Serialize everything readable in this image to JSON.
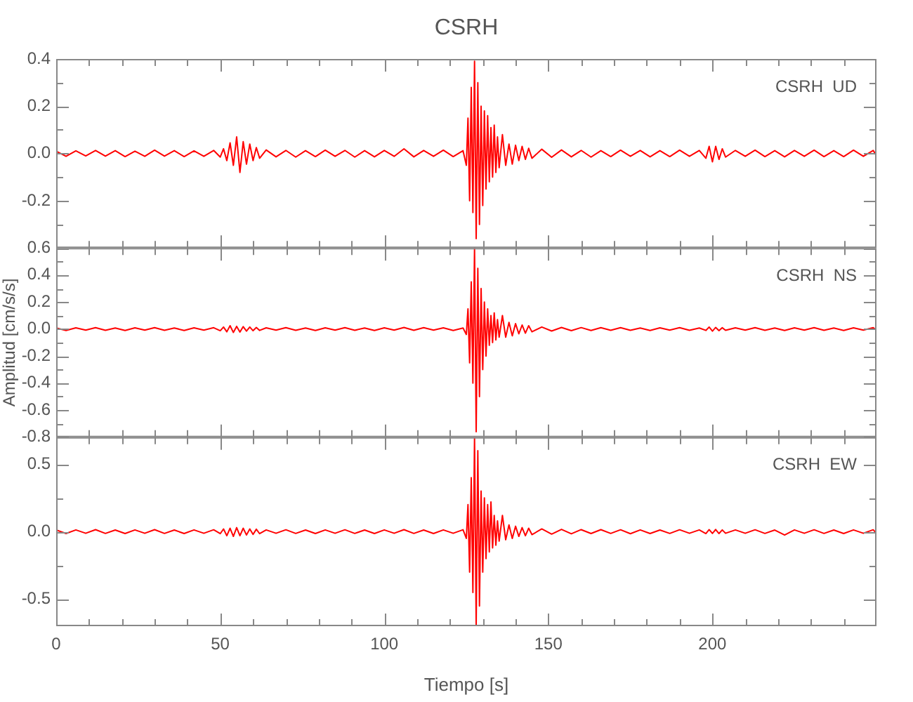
{
  "chart_data": [
    {
      "type": "line",
      "title": "CSRH",
      "annotations": [
        "CSRH  UD"
      ],
      "color": "#ff0000",
      "tick_labels": "y",
      "x": [
        0,
        3,
        6,
        9,
        12,
        15,
        18,
        21,
        24,
        27,
        30,
        33,
        36,
        39,
        42,
        45,
        48,
        50,
        51,
        52,
        53,
        54,
        55,
        56,
        57,
        58,
        59,
        60,
        61,
        62,
        64,
        67,
        70,
        73,
        76,
        79,
        82,
        85,
        88,
        91,
        94,
        97,
        100,
        103,
        106,
        109,
        112,
        115,
        118,
        121,
        124,
        125,
        125.5,
        126,
        126.5,
        127,
        127.5,
        128,
        128.5,
        129,
        129.5,
        130,
        130.5,
        131,
        131.5,
        132,
        132.5,
        133,
        133.5,
        134,
        134.5,
        135,
        136,
        137,
        138,
        139,
        140,
        141,
        142,
        143,
        144,
        145,
        148,
        151,
        154,
        157,
        160,
        163,
        166,
        169,
        172,
        175,
        178,
        181,
        184,
        187,
        190,
        193,
        196,
        198,
        199,
        200,
        201,
        202,
        203,
        204,
        207,
        210,
        213,
        216,
        219,
        222,
        225,
        228,
        231,
        234,
        237,
        240,
        243,
        246,
        249,
        250
      ],
      "values": [
        0.01,
        -0.012,
        0.011,
        -0.01,
        0.013,
        -0.011,
        0.012,
        -0.013,
        0.01,
        -0.012,
        0.014,
        -0.011,
        0.012,
        -0.013,
        0.011,
        -0.012,
        0.013,
        -0.015,
        0.02,
        -0.03,
        0.045,
        -0.05,
        0.07,
        -0.08,
        0.05,
        -0.045,
        0.04,
        -0.03,
        0.025,
        -0.02,
        0.015,
        -0.014,
        0.013,
        -0.015,
        0.012,
        -0.013,
        0.014,
        -0.012,
        0.013,
        -0.015,
        0.012,
        -0.014,
        0.013,
        -0.012,
        0.02,
        -0.014,
        0.013,
        -0.012,
        0.014,
        -0.013,
        0.012,
        -0.05,
        0.15,
        -0.2,
        0.28,
        -0.25,
        0.39,
        -0.36,
        0.3,
        -0.3,
        0.2,
        -0.22,
        0.18,
        -0.15,
        0.16,
        -0.12,
        0.11,
        -0.1,
        0.12,
        -0.08,
        0.07,
        -0.06,
        0.08,
        -0.05,
        0.04,
        -0.045,
        0.035,
        -0.03,
        0.03,
        -0.025,
        0.022,
        -0.02,
        0.018,
        -0.016,
        0.015,
        -0.014,
        0.013,
        -0.015,
        0.012,
        -0.013,
        0.014,
        -0.012,
        0.013,
        -0.014,
        0.012,
        -0.013,
        0.014,
        -0.012,
        0.013,
        -0.02,
        0.03,
        -0.035,
        0.03,
        -0.025,
        0.02,
        -0.015,
        0.013,
        -0.012,
        0.014,
        -0.013,
        0.012,
        -0.014,
        0.013,
        -0.012,
        0.014,
        -0.013,
        0.012,
        -0.013,
        0.014,
        -0.012,
        0.013,
        -0.01
      ],
      "xlim": [
        0,
        250
      ],
      "xticks": [
        0,
        {
          "value": 10,
          "label": null
        },
        {
          "value": 20,
          "label": null
        },
        {
          "value": 30,
          "label": null
        },
        {
          "value": 40,
          "label": null
        },
        50,
        {
          "value": 60,
          "label": null
        },
        {
          "value": 70,
          "label": null
        },
        {
          "value": 80,
          "label": null
        },
        {
          "value": 90,
          "label": null
        },
        100,
        {
          "value": 110,
          "label": null
        },
        {
          "value": 120,
          "label": null
        },
        {
          "value": 130,
          "label": null
        },
        {
          "value": 140,
          "label": null
        },
        150,
        {
          "value": 160,
          "label": null
        },
        {
          "value": 170,
          "label": null
        },
        {
          "value": 180,
          "label": null
        },
        {
          "value": 190,
          "label": null
        },
        200,
        {
          "value": 210,
          "label": null
        },
        {
          "value": 220,
          "label": null
        },
        {
          "value": 230,
          "label": null
        },
        {
          "value": 240,
          "label": null
        }
      ],
      "ylim": [
        -0.4,
        0.4
      ],
      "yticks": [
        {
          "value": -0.4,
          "label": null
        },
        {
          "value": -0.3,
          "label": null
        },
        {
          "value": -0.2,
          "label": "-0.2"
        },
        {
          "value": -0.1,
          "label": null
        },
        {
          "value": 0,
          "label": "0.0"
        },
        {
          "value": 0.1,
          "label": null
        },
        {
          "value": 0.2,
          "label": "0.2"
        },
        {
          "value": 0.3,
          "label": null
        },
        {
          "value": 0.4,
          "label": "0.4"
        }
      ]
    },
    {
      "type": "line",
      "ylabel": "Amplitud [cm/s/s]",
      "annotations": [
        "CSRH  NS"
      ],
      "color": "#ff0000",
      "tick_labels": "y",
      "x": [
        0,
        3,
        6,
        9,
        12,
        15,
        18,
        21,
        24,
        27,
        30,
        33,
        36,
        39,
        42,
        45,
        48,
        50,
        51,
        52,
        53,
        54,
        55,
        56,
        57,
        58,
        59,
        60,
        61,
        62,
        64,
        67,
        70,
        73,
        76,
        79,
        82,
        85,
        88,
        91,
        94,
        97,
        100,
        103,
        106,
        109,
        112,
        115,
        118,
        121,
        124,
        125,
        125.5,
        126,
        126.5,
        127,
        127.5,
        128,
        128.5,
        129,
        129.5,
        130,
        130.5,
        131,
        131.5,
        132,
        132.5,
        133,
        133.5,
        134,
        134.5,
        135,
        136,
        137,
        138,
        139,
        140,
        141,
        142,
        143,
        144,
        145,
        148,
        151,
        154,
        157,
        160,
        163,
        166,
        169,
        172,
        175,
        178,
        181,
        184,
        187,
        190,
        193,
        196,
        198,
        199,
        200,
        201,
        202,
        203,
        204,
        207,
        210,
        213,
        216,
        219,
        222,
        225,
        228,
        231,
        234,
        237,
        240,
        243,
        246,
        249,
        250
      ],
      "values": [
        0.008,
        -0.01,
        0.009,
        -0.008,
        0.01,
        -0.009,
        0.008,
        -0.01,
        0.009,
        -0.008,
        0.01,
        -0.009,
        0.008,
        -0.01,
        0.009,
        -0.008,
        0.01,
        -0.012,
        0.015,
        -0.02,
        0.025,
        -0.025,
        0.02,
        -0.022,
        0.018,
        -0.015,
        0.015,
        -0.012,
        0.012,
        -0.01,
        0.009,
        -0.008,
        0.01,
        -0.009,
        0.008,
        -0.01,
        0.009,
        -0.008,
        0.01,
        -0.009,
        0.008,
        -0.01,
        0.009,
        -0.008,
        0.012,
        -0.009,
        0.01,
        -0.008,
        0.009,
        -0.01,
        0.008,
        -0.04,
        0.15,
        -0.25,
        0.35,
        -0.4,
        0.6,
        -0.76,
        0.45,
        -0.5,
        0.3,
        -0.3,
        0.2,
        -0.2,
        0.15,
        -0.12,
        0.1,
        -0.1,
        0.12,
        -0.08,
        0.07,
        -0.06,
        0.1,
        -0.06,
        0.05,
        -0.05,
        0.04,
        -0.035,
        0.03,
        -0.03,
        0.025,
        -0.02,
        0.015,
        -0.014,
        0.012,
        -0.012,
        0.011,
        -0.01,
        0.01,
        -0.009,
        0.01,
        -0.009,
        0.008,
        -0.01,
        0.009,
        -0.008,
        0.01,
        -0.009,
        0.008,
        -0.01,
        0.015,
        -0.015,
        0.012,
        -0.012,
        0.01,
        -0.009,
        0.009,
        -0.008,
        0.01,
        -0.009,
        0.008,
        -0.01,
        0.009,
        -0.008,
        0.01,
        -0.009,
        0.008,
        -0.01,
        0.009,
        -0.008,
        0.01,
        -0.008
      ],
      "xlim": [
        0,
        250
      ],
      "xticks": [
        0,
        {
          "value": 10,
          "label": null
        },
        {
          "value": 20,
          "label": null
        },
        {
          "value": 30,
          "label": null
        },
        {
          "value": 40,
          "label": null
        },
        50,
        {
          "value": 60,
          "label": null
        },
        {
          "value": 70,
          "label": null
        },
        {
          "value": 80,
          "label": null
        },
        {
          "value": 90,
          "label": null
        },
        100,
        {
          "value": 110,
          "label": null
        },
        {
          "value": 120,
          "label": null
        },
        {
          "value": 130,
          "label": null
        },
        {
          "value": 140,
          "label": null
        },
        150,
        {
          "value": 160,
          "label": null
        },
        {
          "value": 170,
          "label": null
        },
        {
          "value": 180,
          "label": null
        },
        {
          "value": 190,
          "label": null
        },
        200,
        {
          "value": 210,
          "label": null
        },
        {
          "value": 220,
          "label": null
        },
        {
          "value": 230,
          "label": null
        },
        {
          "value": 240,
          "label": null
        }
      ],
      "ylim": [
        -0.8,
        0.6
      ],
      "yticks": [
        {
          "value": -0.8,
          "label": "-0.8"
        },
        {
          "value": -0.7,
          "label": null
        },
        {
          "value": -0.6,
          "label": "-0.6"
        },
        {
          "value": -0.5,
          "label": null
        },
        {
          "value": -0.4,
          "label": "-0.4"
        },
        {
          "value": -0.3,
          "label": null
        },
        {
          "value": -0.2,
          "label": "-0.2"
        },
        {
          "value": -0.1,
          "label": null
        },
        {
          "value": 0,
          "label": "0.0"
        },
        {
          "value": 0.1,
          "label": null
        },
        {
          "value": 0.2,
          "label": "0.2"
        },
        {
          "value": 0.3,
          "label": null
        },
        {
          "value": 0.4,
          "label": "0.4"
        },
        {
          "value": 0.5,
          "label": null
        },
        {
          "value": 0.6,
          "label": "0.6"
        }
      ]
    },
    {
      "type": "line",
      "xlabel": "Tiempo [s]",
      "annotations": [
        "CSRH  EW"
      ],
      "color": "#ff0000",
      "x": [
        0,
        3,
        6,
        9,
        12,
        15,
        18,
        21,
        24,
        27,
        30,
        33,
        36,
        39,
        42,
        45,
        48,
        50,
        51,
        52,
        53,
        54,
        55,
        56,
        57,
        58,
        59,
        60,
        61,
        62,
        64,
        67,
        70,
        73,
        76,
        79,
        82,
        85,
        88,
        91,
        94,
        97,
        100,
        103,
        106,
        109,
        112,
        115,
        118,
        121,
        124,
        125,
        125.5,
        126,
        126.5,
        127,
        127.5,
        128,
        128.5,
        129,
        129.5,
        130,
        130.5,
        131,
        131.5,
        132,
        132.5,
        133,
        133.5,
        134,
        134.5,
        135,
        136,
        137,
        138,
        139,
        140,
        141,
        142,
        143,
        144,
        145,
        148,
        151,
        154,
        157,
        160,
        163,
        166,
        169,
        172,
        175,
        178,
        181,
        184,
        187,
        190,
        193,
        196,
        198,
        199,
        200,
        201,
        202,
        203,
        204,
        207,
        210,
        213,
        216,
        219,
        222,
        225,
        228,
        231,
        234,
        237,
        240,
        243,
        246,
        249,
        250
      ],
      "values": [
        0.012,
        -0.014,
        0.013,
        -0.012,
        0.015,
        -0.013,
        0.012,
        -0.014,
        0.013,
        -0.012,
        0.015,
        -0.013,
        0.012,
        -0.014,
        0.013,
        -0.012,
        0.014,
        -0.015,
        0.02,
        -0.03,
        0.025,
        -0.035,
        0.03,
        -0.03,
        0.025,
        -0.025,
        0.02,
        -0.02,
        0.018,
        -0.015,
        0.013,
        -0.012,
        0.014,
        -0.013,
        0.012,
        -0.014,
        0.013,
        -0.012,
        0.014,
        -0.013,
        0.012,
        -0.014,
        0.013,
        -0.012,
        0.015,
        -0.013,
        0.012,
        -0.014,
        0.013,
        -0.012,
        0.014,
        -0.05,
        0.2,
        -0.3,
        0.4,
        -0.45,
        0.7,
        -0.69,
        0.6,
        -0.55,
        0.3,
        -0.3,
        0.25,
        -0.2,
        0.2,
        -0.15,
        0.22,
        -0.12,
        0.12,
        -0.1,
        0.08,
        -0.07,
        0.12,
        -0.06,
        0.05,
        -0.05,
        0.04,
        -0.035,
        0.03,
        -0.03,
        0.025,
        -0.022,
        0.02,
        -0.018,
        0.017,
        -0.016,
        0.015,
        -0.014,
        0.015,
        -0.013,
        0.014,
        -0.015,
        0.013,
        -0.014,
        0.012,
        -0.013,
        0.014,
        -0.012,
        0.013,
        -0.014,
        0.015,
        -0.013,
        0.016,
        -0.014,
        0.013,
        -0.012,
        0.013,
        -0.012,
        0.014,
        -0.013,
        0.012,
        -0.025,
        0.013,
        -0.012,
        0.014,
        -0.013,
        0.012,
        -0.014,
        0.013,
        -0.012,
        0.014,
        -0.013
      ],
      "xlim": [
        0,
        250
      ],
      "xticks": [
        0,
        {
          "value": 10,
          "label": null
        },
        {
          "value": 20,
          "label": null
        },
        {
          "value": 30,
          "label": null
        },
        {
          "value": 40,
          "label": null
        },
        50,
        {
          "value": 60,
          "label": null
        },
        {
          "value": 70,
          "label": null
        },
        {
          "value": 80,
          "label": null
        },
        {
          "value": 90,
          "label": null
        },
        100,
        {
          "value": 110,
          "label": null
        },
        {
          "value": 120,
          "label": null
        },
        {
          "value": 130,
          "label": null
        },
        {
          "value": 140,
          "label": null
        },
        150,
        {
          "value": 160,
          "label": null
        },
        {
          "value": 170,
          "label": null
        },
        {
          "value": 180,
          "label": null
        },
        {
          "value": 190,
          "label": null
        },
        200,
        {
          "value": 210,
          "label": null
        },
        {
          "value": 220,
          "label": null
        },
        {
          "value": 230,
          "label": null
        },
        {
          "value": 240,
          "label": null
        }
      ],
      "ylim": [
        -0.7,
        0.7
      ],
      "yticks": [
        {
          "value": -0.5,
          "label": "-0.5"
        },
        {
          "value": -0.25,
          "label": null
        },
        {
          "value": 0,
          "label": "0.0"
        },
        {
          "value": 0.25,
          "label": null
        },
        {
          "value": 0.5,
          "label": "0.5"
        }
      ]
    }
  ]
}
